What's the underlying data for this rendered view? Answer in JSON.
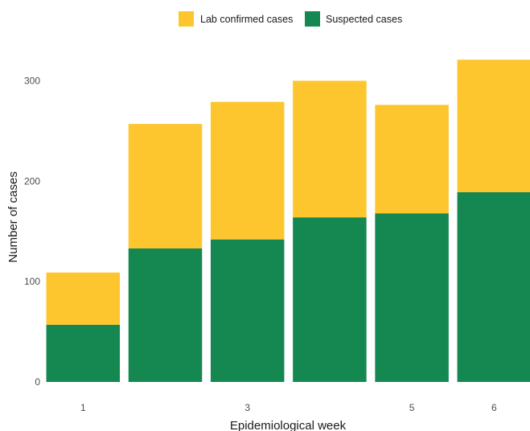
{
  "chart_data": {
    "type": "bar",
    "stacked": true,
    "categories": [
      1,
      2,
      3,
      4,
      5,
      6
    ],
    "x_tick_labels": [
      "1",
      "3",
      "5",
      "6"
    ],
    "x_tick_values": [
      1,
      3,
      5,
      6
    ],
    "series": [
      {
        "name": "Suspected cases",
        "color": "#148850",
        "values": [
          57,
          133,
          142,
          164,
          168,
          189
        ]
      },
      {
        "name": "Lab confirmed cases",
        "color": "#FEC62E",
        "values": [
          52,
          124,
          137,
          136,
          108,
          132
        ]
      }
    ],
    "legend_order": [
      "Lab confirmed cases",
      "Suspected cases"
    ],
    "legend_position": "top",
    "title": "",
    "xlabel": "Epidemiological week",
    "ylabel": "Number of cases",
    "ylim": [
      0,
      330
    ],
    "y_ticks": [
      0,
      100,
      200,
      300
    ],
    "grid": false
  }
}
